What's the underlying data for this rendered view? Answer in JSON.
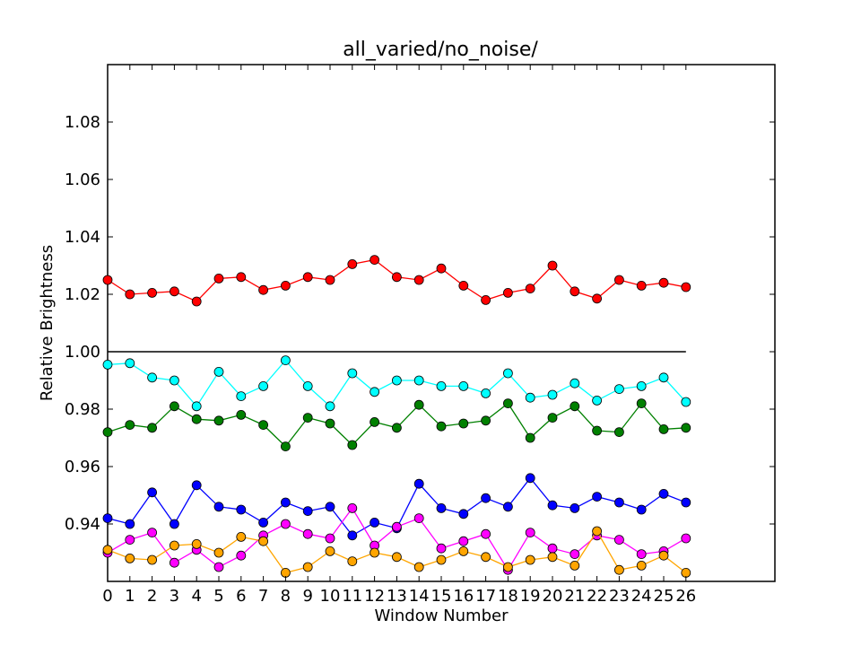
{
  "chart_data": {
    "type": "line",
    "title": "all_varied/no_noise/",
    "xlabel": "Window Number",
    "ylabel": "Relative Brightness",
    "xlim": [
      0,
      30
    ],
    "ylim": [
      0.92,
      1.1
    ],
    "xticks": [
      0,
      1,
      2,
      3,
      4,
      5,
      6,
      7,
      8,
      9,
      10,
      11,
      12,
      13,
      14,
      15,
      16,
      17,
      18,
      19,
      20,
      21,
      22,
      23,
      24,
      25,
      26
    ],
    "yticks": [
      0.94,
      0.96,
      0.98,
      1.0,
      1.02,
      1.04,
      1.06,
      1.08
    ],
    "ytick_labels": [
      "0.94",
      "0.96",
      "0.98",
      "1.00",
      "1.02",
      "1.04",
      "1.06",
      "1.08"
    ],
    "grid": false,
    "reference_line": {
      "y": 1.0,
      "x_range": [
        0,
        26
      ],
      "color": "#000000"
    },
    "x": [
      0,
      1,
      2,
      3,
      4,
      5,
      6,
      7,
      8,
      9,
      10,
      11,
      12,
      13,
      14,
      15,
      16,
      17,
      18,
      19,
      20,
      21,
      22,
      23,
      24,
      25,
      26
    ],
    "series": [
      {
        "color": "#ff0000",
        "values": [
          1.025,
          1.02,
          1.0205,
          1.021,
          1.0175,
          1.0255,
          1.026,
          1.0215,
          1.023,
          1.026,
          1.025,
          1.0305,
          1.032,
          1.026,
          1.025,
          1.029,
          1.023,
          1.018,
          1.0205,
          1.022,
          1.03,
          1.021,
          1.0185,
          1.025,
          1.023,
          1.024,
          1.0225
        ]
      },
      {
        "color": "#00ffff",
        "values": [
          0.9955,
          0.996,
          0.991,
          0.99,
          0.981,
          0.993,
          0.9845,
          0.988,
          0.997,
          0.988,
          0.981,
          0.9925,
          0.986,
          0.99,
          0.99,
          0.988,
          0.988,
          0.9855,
          0.9925,
          0.984,
          0.985,
          0.989,
          0.983,
          0.987,
          0.988,
          0.991,
          0.9825
        ]
      },
      {
        "color": "#008000",
        "values": [
          0.972,
          0.9745,
          0.9735,
          0.981,
          0.9765,
          0.976,
          0.978,
          0.9745,
          0.967,
          0.977,
          0.975,
          0.9675,
          0.9755,
          0.9735,
          0.9815,
          0.974,
          0.975,
          0.976,
          0.982,
          0.97,
          0.977,
          0.981,
          0.9725,
          0.972,
          0.982,
          0.973,
          0.9735
        ]
      },
      {
        "color": "#0000ff",
        "values": [
          0.942,
          0.94,
          0.951,
          0.94,
          0.9535,
          0.946,
          0.945,
          0.9405,
          0.9475,
          0.9445,
          0.946,
          0.936,
          0.9405,
          0.9385,
          0.954,
          0.9455,
          0.9435,
          0.949,
          0.946,
          0.956,
          0.9465,
          0.9455,
          0.9495,
          0.9475,
          0.945,
          0.9505,
          0.9475
        ]
      },
      {
        "color": "#ff00ff",
        "values": [
          0.93,
          0.9345,
          0.937,
          0.9265,
          0.931,
          0.925,
          0.929,
          0.936,
          0.94,
          0.9365,
          0.935,
          0.9455,
          0.9325,
          0.939,
          0.942,
          0.9315,
          0.934,
          0.9365,
          0.924,
          0.937,
          0.9315,
          0.9295,
          0.936,
          0.9345,
          0.9295,
          0.9305,
          0.935
        ]
      },
      {
        "color": "#ffa500",
        "values": [
          0.931,
          0.928,
          0.9275,
          0.9325,
          0.933,
          0.93,
          0.9355,
          0.934,
          0.923,
          0.925,
          0.9305,
          0.927,
          0.93,
          0.9285,
          0.925,
          0.9275,
          0.9305,
          0.9285,
          0.925,
          0.9275,
          0.9285,
          0.9255,
          0.9375,
          0.924,
          0.9255,
          0.929,
          0.923
        ]
      }
    ]
  }
}
